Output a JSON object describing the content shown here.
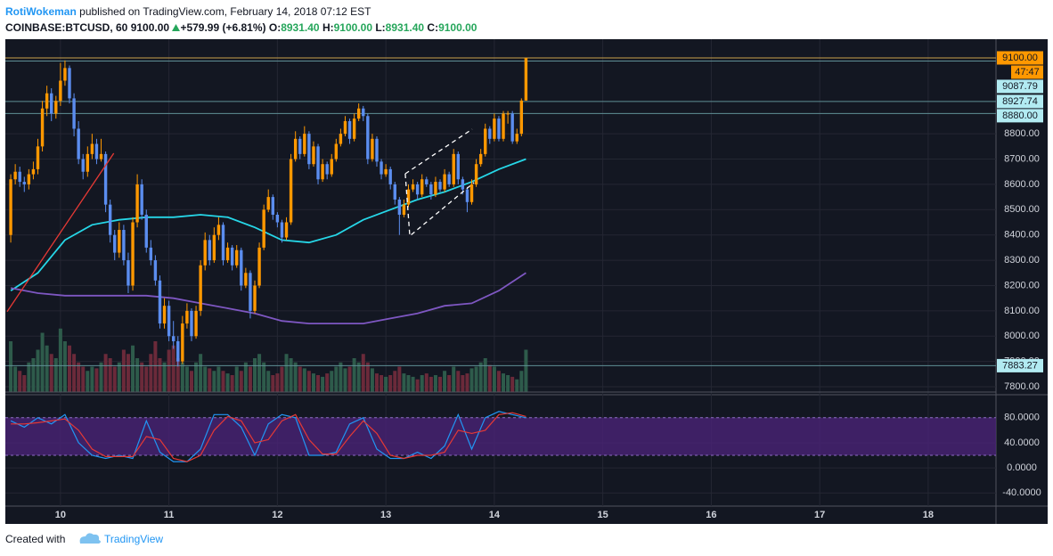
{
  "header": {
    "author": "RotiWokeman",
    "published": "published on TradingView.com, February 14, 2018 07:12 EST",
    "symbol": "COINBASE:BTCUSD, 60",
    "last": "9100.00",
    "change": "+579.99 (+6.81%)",
    "o_label": "O:",
    "o": "8931.40",
    "h_label": "H:",
    "h": "9100.00",
    "l_label": "L:",
    "l": "8931.40",
    "c_label": "C:",
    "c": "9100.00"
  },
  "chart_data": {
    "type": "candlestick",
    "bull_color": "#ff9800",
    "bear_color": "#5b8def",
    "volume_up_color": "#2e5b4b",
    "volume_down_color": "#6b2a3a",
    "xlim": [
      -11.8,
      207
    ],
    "xticks": [
      {
        "value": 0,
        "label": "10"
      },
      {
        "value": 24,
        "label": "11"
      },
      {
        "value": 48,
        "label": "12"
      },
      {
        "value": 72,
        "label": "13"
      },
      {
        "value": 96,
        "label": "14"
      },
      {
        "value": 120,
        "label": "15"
      },
      {
        "value": 144,
        "label": "16"
      },
      {
        "value": 168,
        "label": "17"
      },
      {
        "value": 192,
        "label": "18"
      }
    ],
    "ylim": [
      7779,
      9114
    ],
    "yticks": [
      {
        "value": 7800,
        "label": "7800.00"
      },
      {
        "value": 7900,
        "label": "7900.00"
      },
      {
        "value": 8000,
        "label": "8000.00"
      },
      {
        "value": 8100,
        "label": "8100.00"
      },
      {
        "value": 8200,
        "label": "8200.00"
      },
      {
        "value": 8300,
        "label": "8300.00"
      },
      {
        "value": 8400,
        "label": "8400.00"
      },
      {
        "value": 8500,
        "label": "8500.00"
      },
      {
        "value": 8600,
        "label": "8600.00"
      },
      {
        "value": 8700,
        "label": "8700.00"
      },
      {
        "value": 8800,
        "label": "8800.00"
      }
    ],
    "grid": true,
    "x": [
      -11,
      -10,
      -9,
      -8,
      -7,
      -6,
      -5,
      -4,
      -3,
      -2,
      -1,
      0,
      1,
      2,
      3,
      4,
      5,
      6,
      7,
      8,
      9,
      10,
      11,
      12,
      13,
      14,
      15,
      16,
      17,
      18,
      19,
      20,
      21,
      22,
      23,
      24,
      25,
      26,
      27,
      28,
      29,
      30,
      31,
      32,
      33,
      34,
      35,
      36,
      37,
      38,
      39,
      40,
      41,
      42,
      43,
      44,
      45,
      46,
      47,
      48,
      49,
      50,
      51,
      52,
      53,
      54,
      55,
      56,
      57,
      58,
      59,
      60,
      61,
      62,
      63,
      64,
      65,
      66,
      67,
      68,
      69,
      70,
      71,
      72,
      73,
      74,
      75,
      76,
      77,
      78,
      79,
      80,
      81,
      82,
      83,
      84,
      85,
      86,
      87,
      88,
      89,
      90,
      91,
      92,
      93,
      94,
      95,
      96,
      97,
      98,
      99,
      100,
      101,
      102,
      103
    ],
    "candles": [
      [
        8400,
        8640,
        8370,
        8620
      ],
      [
        8620,
        8680,
        8600,
        8650
      ],
      [
        8650,
        8670,
        8590,
        8610
      ],
      [
        8610,
        8630,
        8570,
        8600
      ],
      [
        8600,
        8660,
        8580,
        8640
      ],
      [
        8640,
        8690,
        8620,
        8660
      ],
      [
        8660,
        8780,
        8640,
        8750
      ],
      [
        8750,
        8930,
        8730,
        8900
      ],
      [
        8900,
        8990,
        8870,
        8960
      ],
      [
        8960,
        8980,
        8850,
        8880
      ],
      [
        8880,
        8950,
        8860,
        8930
      ],
      [
        8930,
        9080,
        8910,
        9010
      ],
      [
        9010,
        9090,
        8990,
        9060
      ],
      [
        9060,
        9070,
        8920,
        8940
      ],
      [
        8940,
        8960,
        8790,
        8820
      ],
      [
        8820,
        8850,
        8680,
        8700
      ],
      [
        8700,
        8720,
        8620,
        8650
      ],
      [
        8650,
        8750,
        8630,
        8720
      ],
      [
        8720,
        8800,
        8700,
        8760
      ],
      [
        8760,
        8780,
        8680,
        8700
      ],
      [
        8700,
        8780,
        8690,
        8720
      ],
      [
        8720,
        8730,
        8490,
        8520
      ],
      [
        8520,
        8540,
        8370,
        8400
      ],
      [
        8400,
        8420,
        8300,
        8330
      ],
      [
        8330,
        8450,
        8310,
        8420
      ],
      [
        8420,
        8440,
        8280,
        8300
      ],
      [
        8300,
        8330,
        8170,
        8200
      ],
      [
        8200,
        8470,
        8180,
        8450
      ],
      [
        8450,
        8640,
        8430,
        8600
      ],
      [
        8600,
        8620,
        8460,
        8480
      ],
      [
        8480,
        8500,
        8330,
        8350
      ],
      [
        8350,
        8380,
        8280,
        8300
      ],
      [
        8300,
        8320,
        8200,
        8220
      ],
      [
        8220,
        8240,
        8030,
        8050
      ],
      [
        8050,
        8150,
        8030,
        8120
      ],
      [
        8120,
        8140,
        7980,
        8000
      ],
      [
        8000,
        8060,
        7950,
        7980
      ],
      [
        7980,
        8000,
        7880,
        7900
      ],
      [
        7900,
        8080,
        7890,
        8050
      ],
      [
        8050,
        8130,
        8030,
        8100
      ],
      [
        8100,
        8110,
        7980,
        8000
      ],
      [
        8000,
        8120,
        7990,
        8100
      ],
      [
        8100,
        8300,
        8080,
        8280
      ],
      [
        8280,
        8410,
        8260,
        8380
      ],
      [
        8380,
        8400,
        8280,
        8300
      ],
      [
        8300,
        8430,
        8290,
        8400
      ],
      [
        8400,
        8470,
        8380,
        8440
      ],
      [
        8440,
        8450,
        8280,
        8300
      ],
      [
        8300,
        8370,
        8290,
        8350
      ],
      [
        8350,
        8360,
        8260,
        8280
      ],
      [
        8280,
        8360,
        8270,
        8340
      ],
      [
        8340,
        8350,
        8180,
        8200
      ],
      [
        8200,
        8270,
        8190,
        8250
      ],
      [
        8250,
        8260,
        8070,
        8100
      ],
      [
        8100,
        8220,
        8090,
        8200
      ],
      [
        8200,
        8370,
        8190,
        8350
      ],
      [
        8350,
        8520,
        8340,
        8500
      ],
      [
        8500,
        8580,
        8490,
        8550
      ],
      [
        8550,
        8560,
        8460,
        8480
      ],
      [
        8480,
        8490,
        8430,
        8450
      ],
      [
        8450,
        8460,
        8370,
        8390
      ],
      [
        8390,
        8470,
        8380,
        8450
      ],
      [
        8450,
        8720,
        8440,
        8700
      ],
      [
        8700,
        8810,
        8690,
        8780
      ],
      [
        8780,
        8790,
        8700,
        8720
      ],
      [
        8720,
        8830,
        8710,
        8800
      ],
      [
        8800,
        8810,
        8660,
        8680
      ],
      [
        8680,
        8770,
        8670,
        8750
      ],
      [
        8750,
        8760,
        8600,
        8620
      ],
      [
        8620,
        8700,
        8610,
        8680
      ],
      [
        8680,
        8690,
        8620,
        8640
      ],
      [
        8640,
        8720,
        8630,
        8700
      ],
      [
        8700,
        8780,
        8690,
        8760
      ],
      [
        8760,
        8820,
        8750,
        8800
      ],
      [
        8800,
        8870,
        8790,
        8850
      ],
      [
        8850,
        8860,
        8760,
        8780
      ],
      [
        8780,
        8880,
        8770,
        8860
      ],
      [
        8860,
        8920,
        8850,
        8900
      ],
      [
        8900,
        8910,
        8850,
        8870
      ],
      [
        8870,
        8880,
        8680,
        8700
      ],
      [
        8700,
        8800,
        8690,
        8780
      ],
      [
        8780,
        8790,
        8670,
        8690
      ],
      [
        8690,
        8700,
        8620,
        8640
      ],
      [
        8640,
        8680,
        8630,
        8660
      ],
      [
        8660,
        8670,
        8580,
        8600
      ],
      [
        8600,
        8610,
        8520,
        8540
      ],
      [
        8540,
        8550,
        8400,
        8480
      ],
      [
        8480,
        8540,
        8470,
        8520
      ],
      [
        8520,
        8600,
        8510,
        8580
      ],
      [
        8580,
        8620,
        8570,
        8600
      ],
      [
        8600,
        8610,
        8540,
        8560
      ],
      [
        8560,
        8640,
        8550,
        8620
      ],
      [
        8620,
        8630,
        8590,
        8600
      ],
      [
        8600,
        8610,
        8540,
        8560
      ],
      [
        8560,
        8630,
        8550,
        8610
      ],
      [
        8610,
        8620,
        8570,
        8580
      ],
      [
        8580,
        8660,
        8570,
        8640
      ],
      [
        8640,
        8650,
        8590,
        8600
      ],
      [
        8600,
        8740,
        8590,
        8720
      ],
      [
        8720,
        8730,
        8600,
        8620
      ],
      [
        8620,
        8630,
        8560,
        8580
      ],
      [
        8580,
        8590,
        8490,
        8530
      ],
      [
        8530,
        8620,
        8520,
        8600
      ],
      [
        8600,
        8700,
        8590,
        8680
      ],
      [
        8680,
        8740,
        8670,
        8720
      ],
      [
        8720,
        8840,
        8710,
        8820
      ],
      [
        8820,
        8830,
        8760,
        8780
      ],
      [
        8780,
        8880,
        8770,
        8860
      ],
      [
        8860,
        8870,
        8770,
        8780
      ],
      [
        8780,
        8890,
        8770,
        8880
      ],
      [
        8880,
        8890,
        8840,
        8880
      ],
      [
        8880,
        8890,
        8760,
        8770
      ],
      [
        8770,
        8820,
        8760,
        8800
      ],
      [
        8800,
        8940,
        8790,
        8931.4
      ],
      [
        8931.4,
        9100,
        8931.4,
        9100
      ]
    ],
    "volume": [
      60,
      30,
      25,
      20,
      35,
      40,
      50,
      70,
      55,
      45,
      40,
      75,
      60,
      55,
      45,
      35,
      30,
      25,
      30,
      28,
      35,
      45,
      40,
      30,
      35,
      50,
      45,
      55,
      40,
      35,
      30,
      45,
      60,
      40,
      35,
      50,
      55,
      40,
      35,
      30,
      25,
      35,
      45,
      30,
      28,
      25,
      30,
      25,
      22,
      20,
      30,
      25,
      35,
      30,
      40,
      45,
      35,
      25,
      20,
      22,
      30,
      45,
      40,
      35,
      30,
      28,
      25,
      22,
      20,
      18,
      22,
      25,
      30,
      35,
      28,
      30,
      40,
      35,
      45,
      35,
      28,
      22,
      20,
      18,
      20,
      25,
      30,
      22,
      20,
      18,
      15,
      20,
      22,
      18,
      20,
      18,
      25,
      20,
      30,
      25,
      20,
      22,
      28,
      30,
      35,
      40,
      32,
      30,
      25,
      22,
      20,
      18,
      15,
      25,
      50
    ],
    "moving_averages": [
      {
        "color": "#26d7e8",
        "x": [
          -11,
          -5,
          1,
          7,
          13,
          19,
          25,
          31,
          37,
          43,
          49,
          55,
          61,
          67,
          73,
          79,
          85,
          91,
          97,
          103
        ],
        "values": [
          8180,
          8250,
          8380,
          8440,
          8460,
          8470,
          8470,
          8480,
          8470,
          8430,
          8380,
          8370,
          8400,
          8460,
          8500,
          8540,
          8570,
          8610,
          8660,
          8700
        ]
      },
      {
        "color": "#7e57c2",
        "x": [
          -11,
          -5,
          1,
          7,
          13,
          19,
          25,
          31,
          37,
          43,
          49,
          55,
          61,
          67,
          73,
          79,
          85,
          91,
          97,
          103
        ],
        "values": [
          8190,
          8170,
          8160,
          8160,
          8160,
          8160,
          8150,
          8130,
          8110,
          8090,
          8060,
          8050,
          8050,
          8050,
          8070,
          8090,
          8120,
          8130,
          8180,
          8250
        ]
      }
    ],
    "drawings": [
      {
        "color": "#e53935",
        "dashed": false,
        "x": [
          -11.8,
          11.8
        ],
        "y": [
          8097,
          8723
        ]
      },
      {
        "color": "#ffffff",
        "dashed": true,
        "x": [
          76.3,
          91.1
        ],
        "y": [
          8642,
          8818
        ]
      },
      {
        "color": "#ffffff",
        "dashed": true,
        "x": [
          76.3,
          77.3,
          91.5
        ],
        "y": [
          8642,
          8396,
          8607
        ]
      }
    ],
    "price_labels": [
      {
        "value": 9100,
        "label": "9100.00",
        "color": "#ff9800",
        "line_color": "#c9a04a"
      },
      {
        "value": 9087.79,
        "label": "9087.79",
        "color": "#b2ebf2",
        "line_color": "#5f8f96"
      },
      {
        "value": 8927.74,
        "label": "8927.74",
        "color": "#b2ebf2",
        "line_color": "#5f8f96"
      },
      {
        "value": 8880,
        "label": "8880.00",
        "color": "#b2ebf2",
        "line_color": "#5f8f96"
      },
      {
        "value": 7883.27,
        "label": "7883.27",
        "color": "#b2ebf2",
        "line_color": "#5f8f96"
      }
    ],
    "countdown": "47:47",
    "stochastic": {
      "ylim": [
        -61,
        111
      ],
      "yticks": [
        {
          "value": 80,
          "label": "80.0000"
        },
        {
          "value": 40,
          "label": "40.0000"
        },
        {
          "value": 0,
          "label": "0.0000"
        },
        {
          "value": -40,
          "label": "-40.0000"
        }
      ],
      "band": [
        20,
        80
      ],
      "band_color": "#4a2377",
      "x": [
        -11,
        -8,
        -5,
        -2,
        1,
        4,
        7,
        10,
        13,
        16,
        19,
        22,
        25,
        28,
        31,
        34,
        37,
        40,
        43,
        46,
        49,
        52,
        55,
        58,
        61,
        64,
        67,
        70,
        73,
        76,
        79,
        82,
        85,
        88,
        91,
        94,
        97,
        100,
        103
      ],
      "series": [
        {
          "color": "#2196f3",
          "values": [
            75,
            65,
            80,
            70,
            85,
            40,
            20,
            15,
            20,
            15,
            75,
            25,
            10,
            10,
            30,
            85,
            85,
            65,
            20,
            70,
            85,
            80,
            20,
            20,
            25,
            70,
            80,
            30,
            15,
            15,
            25,
            15,
            35,
            85,
            30,
            80,
            90,
            85,
            80
          ]
        },
        {
          "color": "#e53935",
          "values": [
            70,
            70,
            72,
            75,
            78,
            60,
            30,
            18,
            18,
            18,
            50,
            45,
            15,
            10,
            20,
            60,
            82,
            75,
            40,
            45,
            75,
            85,
            45,
            22,
            22,
            50,
            75,
            55,
            20,
            15,
            20,
            20,
            25,
            60,
            55,
            60,
            85,
            88,
            82
          ]
        }
      ]
    }
  },
  "footer": {
    "created": "Created with",
    "brand": "TradingView"
  }
}
